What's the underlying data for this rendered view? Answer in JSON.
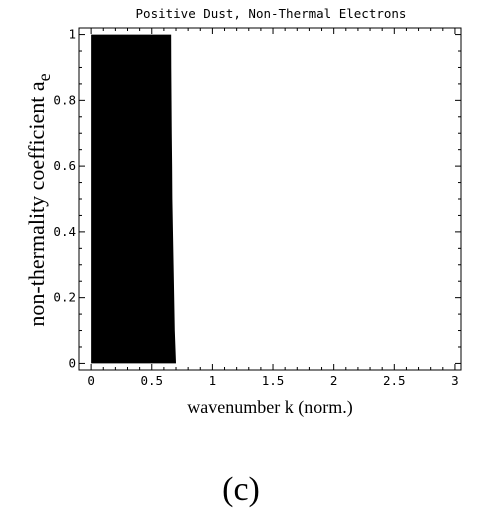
{
  "chart_data": {
    "type": "area",
    "title": "Positive Dust, Non-Thermal Electrons",
    "xlabel": "wavenumber k (norm.)",
    "ylabel": {
      "main": "non-thermality coefficient a",
      "subscript": "e"
    },
    "xlim": [
      -0.1,
      3.05
    ],
    "ylim": [
      -0.02,
      1.02
    ],
    "xticks": [
      "0",
      "0.5",
      "1",
      "1.5",
      "2",
      "2.5",
      "3"
    ],
    "xtick_values": [
      0,
      0.5,
      1,
      1.5,
      2,
      2.5,
      3
    ],
    "yticks": [
      "0",
      "0.2",
      "0.4",
      "0.6",
      "0.8",
      "1"
    ],
    "ytick_values": [
      0,
      0.2,
      0.4,
      0.6,
      0.8,
      1
    ],
    "grid": false,
    "region": {
      "fill": "#000000",
      "x_min": 0,
      "y_range": [
        0,
        1
      ],
      "boundary": [
        {
          "y": 0.0,
          "x": 0.7
        },
        {
          "y": 0.1,
          "x": 0.69
        },
        {
          "y": 0.2,
          "x": 0.685
        },
        {
          "y": 0.3,
          "x": 0.68
        },
        {
          "y": 0.4,
          "x": 0.675
        },
        {
          "y": 0.5,
          "x": 0.67
        },
        {
          "y": 0.6,
          "x": 0.668
        },
        {
          "y": 0.7,
          "x": 0.665
        },
        {
          "y": 0.8,
          "x": 0.663
        },
        {
          "y": 0.9,
          "x": 0.661
        },
        {
          "y": 1.0,
          "x": 0.66
        }
      ]
    }
  },
  "caption": "(c)"
}
